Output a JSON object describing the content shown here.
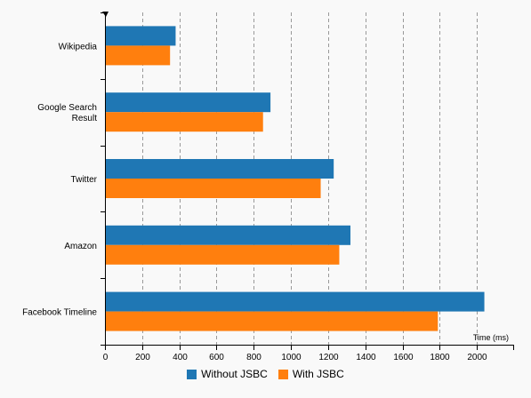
{
  "chart_data": {
    "type": "bar",
    "orientation": "horizontal",
    "categories": [
      "Wikipedia",
      "Google Search Result",
      "Twitter",
      "Amazon",
      "Facebook Timeline"
    ],
    "series": [
      {
        "name": "Without JSBC",
        "color": "#1f77b4",
        "values": [
          380,
          890,
          1230,
          1320,
          2040
        ]
      },
      {
        "name": "With JSBC",
        "color": "#ff7f0e",
        "values": [
          350,
          850,
          1160,
          1260,
          1790
        ]
      }
    ],
    "xlabel": "Time (ms)",
    "xlim": [
      0,
      2200
    ],
    "xticks": [
      0,
      200,
      400,
      600,
      800,
      1000,
      1200,
      1400,
      1600,
      1800,
      2000
    ],
    "grid": "vertical dashed",
    "legend_position": "bottom"
  },
  "legend": {
    "items": [
      {
        "label": "Without JSBC",
        "color": "#1f77b4"
      },
      {
        "label": "With JSBC",
        "color": "#ff7f0e"
      }
    ]
  }
}
